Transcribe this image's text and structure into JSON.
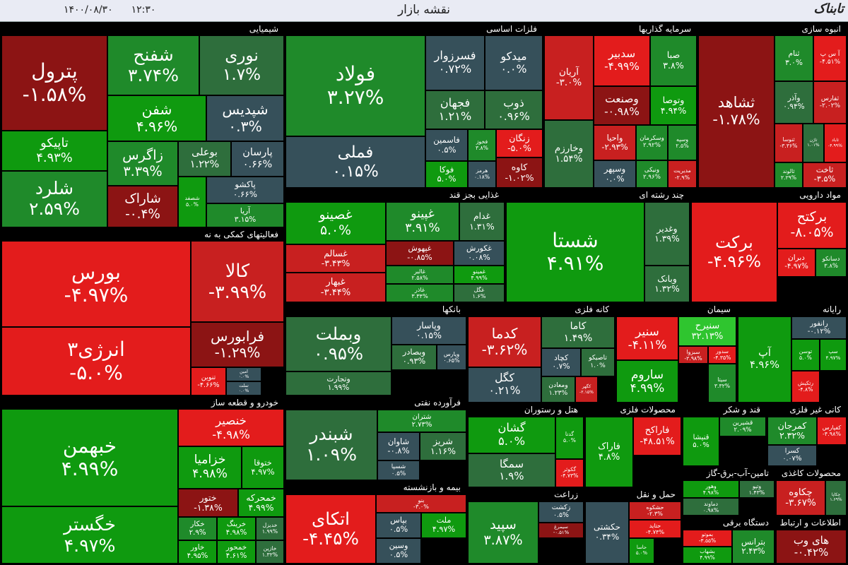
{
  "header": {
    "title": "نقشه بازار",
    "date": "۱۴۰۰/۰۸/۳۰",
    "time": "۱۲:۳۰",
    "logo": "تابناک"
  },
  "sectors": [
    {
      "title": "شیمیایی",
      "tiles": [
        {
          "name": "پترول",
          "change": "-۱.۵۸%",
          "color": "#8c1414"
        },
        {
          "name": "تاپیکو",
          "change": "۴.۹۳%",
          "color": "#0f9a0f"
        },
        {
          "name": "شلرد",
          "change": "۲.۵۹%",
          "color": "#1f8a2a"
        },
        {
          "name": "شفنح",
          "change": "۳.۷۴%",
          "color": "#1f8a2a"
        },
        {
          "name": "نوری",
          "change": "۱.۷%",
          "color": "#2e6e3c"
        },
        {
          "name": "شفن",
          "change": "۴.۹۶%",
          "color": "#0f9a0f"
        },
        {
          "name": "شپدیس",
          "change": "۰.۳%",
          "color": "#36505a"
        },
        {
          "name": "زاگرس",
          "change": "۳.۳۹%",
          "color": "#1f8a2a"
        },
        {
          "name": "بوعلی",
          "change": "۱.۲۲%",
          "color": "#2e6e3c"
        },
        {
          "name": "پارسان",
          "change": "۰.۶۶%",
          "color": "#36505a"
        },
        {
          "name": "شاراک",
          "change": "-۰.۴%",
          "color": "#8c1414"
        },
        {
          "name": "شصفد",
          "change": "۵.۰%",
          "color": "#0f9a0f"
        },
        {
          "name": "پاکشو",
          "change": "۰.۶۶%",
          "color": "#36505a"
        },
        {
          "name": "آریا",
          "change": "۳.۱۵%",
          "color": "#1f8a2a"
        }
      ]
    },
    {
      "title": "فعالیتهای کمکی به نه",
      "tiles": [
        {
          "name": "بورس",
          "change": "-۴.۹۷%",
          "color": "#e31c1c"
        },
        {
          "name": "انرژی۳",
          "change": "-۵.۰%",
          "color": "#e31c1c"
        },
        {
          "name": "کالا",
          "change": "-۳.۹۹%",
          "color": "#c82020"
        },
        {
          "name": "فرابورس",
          "change": "-۱.۲۹%",
          "color": "#8c1414"
        },
        {
          "name": "تنوین",
          "change": "-۴.۶۶%",
          "color": "#e31c1c"
        },
        {
          "name": "امین",
          "change": "۰.۰%",
          "color": "#36505a"
        },
        {
          "name": "تملت",
          "change": "۰.۰%",
          "color": "#36505a"
        }
      ]
    },
    {
      "title": "خودرو  و قطعه ساز",
      "tiles": [
        {
          "name": "خبهمن",
          "change": "۴.۹۹%",
          "color": "#0f9a0f"
        },
        {
          "name": "خگستر",
          "change": "۴.۹۷%",
          "color": "#0f9a0f"
        },
        {
          "name": "خنصیر",
          "change": "-۴.۹۸%",
          "color": "#e31c1c"
        },
        {
          "name": "خزامیا",
          "change": "۴.۹۸%",
          "color": "#0f9a0f"
        },
        {
          "name": "ختوقا",
          "change": "۴.۹۷%",
          "color": "#0f9a0f"
        },
        {
          "name": "ختور",
          "change": "-۱.۳۸%",
          "color": "#8c1414"
        },
        {
          "name": "خمحرکه",
          "change": "۴.۹۹%",
          "color": "#0f9a0f"
        },
        {
          "name": "خکار",
          "change": "۲.۹%",
          "color": "#1f8a2a"
        },
        {
          "name": "خرینگ",
          "change": "۴.۹۸%",
          "color": "#0f9a0f"
        },
        {
          "name": "خدیزل",
          "change": "۱.۹۹%",
          "color": "#2e6e3c"
        },
        {
          "name": "خاور",
          "change": "۴.۹۵%",
          "color": "#0f9a0f"
        },
        {
          "name": "خمحور",
          "change": "۴.۶۱%",
          "color": "#0f9a0f"
        },
        {
          "name": "خازین",
          "change": "۱.۳۲%",
          "color": "#2e6e3c"
        }
      ]
    },
    {
      "title": "فلزات اساسی",
      "tiles": [
        {
          "name": "فولاد",
          "change": "۳.۲۷%",
          "color": "#1f8a2a"
        },
        {
          "name": "فملی",
          "change": "۰.۱۵%",
          "color": "#36505a"
        },
        {
          "name": "فسرزوار",
          "change": "۰.۷۲%",
          "color": "#36505a"
        },
        {
          "name": "میدکو",
          "change": "۰.۰%",
          "color": "#36505a"
        },
        {
          "name": "فجهان",
          "change": "۱.۲۱%",
          "color": "#2e6e3c"
        },
        {
          "name": "ذوب",
          "change": "۰.۹۶%",
          "color": "#2e6e3c"
        },
        {
          "name": "فاسمین",
          "change": "۰.۵%",
          "color": "#36505a"
        },
        {
          "name": "فخوز",
          "change": "۳.۸%",
          "color": "#1f8a2a"
        },
        {
          "name": "زنگان",
          "change": "-۵.۰%",
          "color": "#e31c1c"
        },
        {
          "name": "فوکا",
          "change": "۵.۰%",
          "color": "#0f9a0f"
        },
        {
          "name": "هرمز",
          "change": "۰.۱۸%",
          "color": "#36505a"
        },
        {
          "name": "کاوه",
          "change": "-۱.۰۲%",
          "color": "#8c1414"
        }
      ]
    },
    {
      "title": "سرمایه گذاریها",
      "tiles": [
        {
          "name": "آریان",
          "change": "-۳.۰%",
          "color": "#c82020"
        },
        {
          "name": "وخارزم",
          "change": "۱.۵۴%",
          "color": "#2e6e3c"
        },
        {
          "name": "سدبیر",
          "change": "-۴.۹۹%",
          "color": "#e31c1c"
        },
        {
          "name": "صبا",
          "change": "۳.۸%",
          "color": "#1f8a2a"
        },
        {
          "name": "وصنعت",
          "change": "-۰.۹۸%",
          "color": "#8c1414"
        },
        {
          "name": "وتوصا",
          "change": "۴.۹۴%",
          "color": "#0f9a0f"
        },
        {
          "name": "واحیا",
          "change": "-۲.۹۳%",
          "color": "#c82020"
        },
        {
          "name": "وسکرمان",
          "change": "۲.۹۲%",
          "color": "#1f8a2a"
        },
        {
          "name": "وسپه",
          "change": "۲.۵%",
          "color": "#1f8a2a"
        },
        {
          "name": "وسپهر",
          "change": "۰.۰%",
          "color": "#36505a"
        },
        {
          "name": "ونیکی",
          "change": "۲.۹۶%",
          "color": "#1f8a2a"
        },
        {
          "name": "مدیریت",
          "change": "-۲.۹%",
          "color": "#c82020"
        }
      ]
    },
    {
      "title": "انبوه سازی",
      "tiles": [
        {
          "name": "ثشاهد",
          "change": "-۱.۷۸%",
          "color": "#8c1414"
        },
        {
          "name": "ثنام",
          "change": "۳.۰%",
          "color": "#1f8a2a"
        },
        {
          "name": "آ س پ",
          "change": "-۴.۵۱%",
          "color": "#e31c1c"
        },
        {
          "name": "وآذر",
          "change": "۰.۹۴%",
          "color": "#2e6e3c"
        },
        {
          "name": "ثفارس",
          "change": "-۲.۰۲%",
          "color": "#c82020"
        },
        {
          "name": "ثنوسا",
          "change": "-۳.۳۶%",
          "color": "#c82020"
        },
        {
          "name": "ثاژن",
          "change": "۱.۰۱%",
          "color": "#2e6e3c"
        },
        {
          "name": "ثاباد",
          "change": "-۴.۹۹%",
          "color": "#e31c1c"
        },
        {
          "name": "ثالوند",
          "change": "۲.۲۹%",
          "color": "#1f8a2a"
        },
        {
          "name": "ثاخت",
          "change": "-۳.۵%",
          "color": "#c82020"
        }
      ]
    },
    {
      "title": "غذایی بجز قند",
      "tiles": [
        {
          "name": "غصینو",
          "change": "۵.۰%",
          "color": "#0f9a0f"
        },
        {
          "name": "غسالم",
          "change": "-۳.۴۳%",
          "color": "#c82020"
        },
        {
          "name": "غبهار",
          "change": "-۳.۴۴%",
          "color": "#c82020"
        },
        {
          "name": "غپینو",
          "change": "۳.۹۱%",
          "color": "#1f8a2a"
        },
        {
          "name": "غدام",
          "change": "۱.۳۱%",
          "color": "#2e6e3c"
        },
        {
          "name": "غپهوش",
          "change": "-۰.۸۵%",
          "color": "#8c1414"
        },
        {
          "name": "غکورش",
          "change": "۰.۰۸%",
          "color": "#36505a"
        },
        {
          "name": "غالبر",
          "change": "۲.۵۸%",
          "color": "#1f8a2a"
        },
        {
          "name": "غاذر",
          "change": "۳.۳۴%",
          "color": "#1f8a2a"
        },
        {
          "name": "غمینو",
          "change": "۴.۹۹%",
          "color": "#0f9a0f"
        },
        {
          "name": "غگل",
          "change": "۱.۶%",
          "color": "#2e6e3c"
        }
      ]
    },
    {
      "title": "چند رشته ای",
      "tiles": [
        {
          "name": "شستا",
          "change": "۴.۹۱%",
          "color": "#0f9a0f"
        },
        {
          "name": "وغدیر",
          "change": "۱.۳۹%",
          "color": "#2e6e3c"
        },
        {
          "name": "وبانک",
          "change": "۱.۳۲%",
          "color": "#2e6e3c"
        }
      ]
    },
    {
      "title": "مواد دارویی",
      "tiles": [
        {
          "name": "برکت",
          "change": "-۴.۹۶%",
          "color": "#e31c1c"
        },
        {
          "name": "برکتح",
          "change": "-۸.۰۵%",
          "color": "#e31c1c"
        },
        {
          "name": "دبران",
          "change": "-۴.۹۷%",
          "color": "#e31c1c"
        },
        {
          "name": "دسانکو",
          "change": "۳.۸%",
          "color": "#1f8a2a"
        }
      ]
    },
    {
      "title": "بانکها",
      "tiles": [
        {
          "name": "وبملت",
          "change": "۰.۹۵%",
          "color": "#2e6e3c"
        },
        {
          "name": "وتجارت",
          "change": "۱.۹۹%",
          "color": "#2e6e3c"
        },
        {
          "name": "وپاسار",
          "change": "۰.۱۵%",
          "color": "#36505a"
        },
        {
          "name": "وبصادر",
          "change": "۰.۹۳%",
          "color": "#2e6e3c"
        },
        {
          "name": "وپارس",
          "change": "۰.۶۵%",
          "color": "#36505a"
        }
      ]
    },
    {
      "title": "کانه فلزی",
      "tiles": [
        {
          "name": "کدما",
          "change": "-۳.۶۲%",
          "color": "#c82020"
        },
        {
          "name": "کگل",
          "change": "۰.۲۱%",
          "color": "#36505a"
        },
        {
          "name": "کاما",
          "change": "۱.۴۹%",
          "color": "#2e6e3c"
        },
        {
          "name": "کچاد",
          "change": "۰.۷%",
          "color": "#36505a"
        },
        {
          "name": "تاصیکو",
          "change": "۱.۰%",
          "color": "#2e6e3c"
        },
        {
          "name": "ومعادن",
          "change": "۱.۲۳%",
          "color": "#2e6e3c"
        },
        {
          "name": "کگهر",
          "change": "-۲.۱۵%",
          "color": "#c82020"
        }
      ]
    },
    {
      "title": "سیمان",
      "tiles": [
        {
          "name": "سنیر",
          "change": "-۴.۱۱%",
          "color": "#e31c1c"
        },
        {
          "name": "سنیرح",
          "change": "۳۲.۱۳%",
          "color": "#2fc52f"
        },
        {
          "name": "ساروم",
          "change": "۴.۹۹%",
          "color": "#0f9a0f"
        },
        {
          "name": "سبزوا",
          "change": "-۲.۹۸%",
          "color": "#c82020"
        },
        {
          "name": "سدور",
          "change": "-۴.۳۵%",
          "color": "#e31c1c"
        },
        {
          "name": "سیتا",
          "change": "۳.۳۲%",
          "color": "#1f8a2a"
        }
      ]
    },
    {
      "title": "رایانه",
      "tiles": [
        {
          "name": "آپ",
          "change": "۴.۹۶%",
          "color": "#0f9a0f"
        },
        {
          "name": "رانفور",
          "change": "-۰.۱۲%",
          "color": "#36505a"
        },
        {
          "name": "توسن",
          "change": "۵.۰%",
          "color": "#0f9a0f"
        },
        {
          "name": "سپ",
          "change": "۴.۹۷%",
          "color": "#0f9a0f"
        },
        {
          "name": "رتکیش",
          "change": "-۴.۸%",
          "color": "#e31c1c"
        }
      ]
    },
    {
      "title": "فرآورده نفتی",
      "tiles": [
        {
          "name": "شبندر",
          "change": "۱.۰۹%",
          "color": "#2e6e3c"
        },
        {
          "name": "شتران",
          "change": "۲.۷۳%",
          "color": "#1f8a2a"
        },
        {
          "name": "شاوان",
          "change": "-۰.۸%",
          "color": "#36505a"
        },
        {
          "name": "شریز",
          "change": "۱.۱۶%",
          "color": "#2e6e3c"
        },
        {
          "name": "شسپا",
          "change": "۰.۵%",
          "color": "#36505a"
        }
      ]
    },
    {
      "title": "بیمه و بازنشسته",
      "tiles": [
        {
          "name": "اتکای",
          "change": "-۴.۴۵%",
          "color": "#e31c1c"
        },
        {
          "name": "بنو",
          "change": "-۳.۰%",
          "color": "#c82020"
        },
        {
          "name": "بپاس",
          "change": "۰.۵%",
          "color": "#36505a"
        },
        {
          "name": "ملت",
          "change": "۴.۹۷%",
          "color": "#0f9a0f"
        },
        {
          "name": "وسین",
          "change": "۰.۵%",
          "color": "#36505a"
        }
      ]
    },
    {
      "title": "هتل و رستوران",
      "tiles": [
        {
          "name": "گشان",
          "change": "۵.۰%",
          "color": "#0f9a0f"
        },
        {
          "name": "سمگا",
          "change": "۱.۹%",
          "color": "#2e6e3c"
        },
        {
          "name": "گدنا",
          "change": "۵.۰%",
          "color": "#0f9a0f"
        },
        {
          "name": "گکوثر",
          "change": "-۴.۷۳%",
          "color": "#e31c1c"
        }
      ]
    },
    {
      "title": "محصولات فلزی",
      "tiles": [
        {
          "name": "فاراک",
          "change": "۴.۸%",
          "color": "#0f9a0f"
        },
        {
          "name": "فاراکح",
          "change": "-۴۸.۵۱%",
          "color": "#e31c1c"
        }
      ]
    },
    {
      "title": "قند و شکر",
      "tiles": [
        {
          "name": "قنیشا",
          "change": "۵.۰%",
          "color": "#0f9a0f"
        },
        {
          "name": "قشیرین",
          "change": "۲.۰۹%",
          "color": "#1f8a2a"
        }
      ]
    },
    {
      "title": "کانی غیر فلزی",
      "tiles": [
        {
          "name": "کمرجان",
          "change": "۲.۳۲%",
          "color": "#1f8a2a"
        },
        {
          "name": "کفپارس",
          "change": "-۴.۹۸%",
          "color": "#e31c1c"
        },
        {
          "name": "کسرا",
          "change": "۰.۰۷%",
          "color": "#36505a"
        }
      ]
    },
    {
      "title": "تامین-آب-برق-گاز",
      "tiles": [
        {
          "name": "وهور",
          "change": "۴.۹۸%",
          "color": "#0f9a0f"
        },
        {
          "name": "دماوند",
          "change": "۰.۹۸%",
          "color": "#2e6e3c"
        },
        {
          "name": "وتپو",
          "change": "۱.۴۳%",
          "color": "#2e6e3c"
        }
      ]
    },
    {
      "title": "محصولات کاغذی",
      "tiles": [
        {
          "name": "چکاوه",
          "change": "-۳.۶۷%",
          "color": "#c82020"
        },
        {
          "name": "چکاپا",
          "change": "۱.۶۹%",
          "color": "#2e6e3c"
        }
      ]
    },
    {
      "title": "زراعت",
      "tiles": [
        {
          "name": "سپید",
          "change": "۳.۸۷%",
          "color": "#1f8a2a"
        },
        {
          "name": "زکشت",
          "change": "۰.۵%",
          "color": "#36505a"
        },
        {
          "name": "سیمرغ",
          "change": "-۰.۵۱%",
          "color": "#8c1414"
        }
      ]
    },
    {
      "title": "حمل و نقل",
      "tiles": [
        {
          "name": "حکشتی",
          "change": "۰.۳۴%",
          "color": "#36505a"
        },
        {
          "name": "حشکوه",
          "change": "-۲.۳%",
          "color": "#c82020"
        },
        {
          "name": "حتاید",
          "change": "-۴.۷۴%",
          "color": "#e31c1c"
        },
        {
          "name": "حاسا",
          "change": "۵.۰%",
          "color": "#0f9a0f"
        }
      ]
    },
    {
      "title": "دستگاه برقی",
      "tiles": [
        {
          "name": "بموتو",
          "change": "-۳.۵۵%",
          "color": "#e31c1c"
        },
        {
          "name": "بترانس",
          "change": "۲.۴۳%",
          "color": "#1f8a2a"
        },
        {
          "name": "بشهاب",
          "change": "۴.۹۹%",
          "color": "#0f9a0f"
        }
      ]
    },
    {
      "title": "اطلاعات و ارتباط",
      "tiles": [
        {
          "name": "های وب",
          "change": "-۰.۴۲%",
          "color": "#8c1414"
        }
      ]
    }
  ]
}
